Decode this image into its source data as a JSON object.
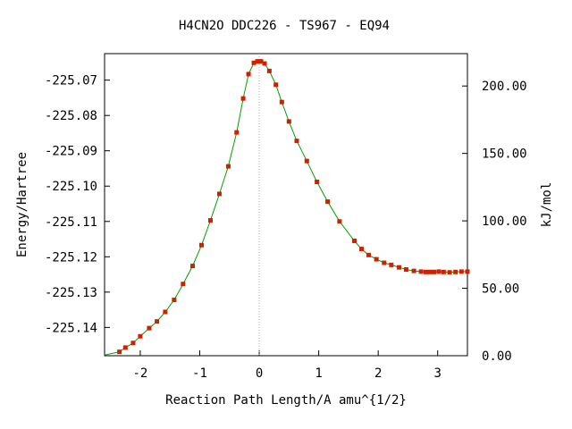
{
  "chart_data": {
    "type": "scatter",
    "title": "H4CN2O   DDC226 - TS967 - EQ94",
    "xlabel": "Reaction Path Length/A amu^{1/2}",
    "ylabel": "Energy/Hartree",
    "y2label": "kJ/mol",
    "xlim": [
      -2.6,
      3.5
    ],
    "ylim": [
      -225.148,
      -225.0625
    ],
    "y2lim": [
      0,
      224
    ],
    "x_ticks": [
      -2,
      -1,
      0,
      1,
      2,
      3
    ],
    "x_tick_labels": [
      "-2",
      "-1",
      "0",
      "1",
      "2",
      "3"
    ],
    "y_ticks": [
      -225.07,
      -225.08,
      -225.09,
      -225.1,
      -225.11,
      -225.12,
      -225.13,
      -225.14
    ],
    "y_tick_labels": [
      "-225.07",
      "-225.08",
      "-225.09",
      "-225.10",
      "-225.11",
      "-225.12",
      "-225.13",
      "-225.14"
    ],
    "y2_ticks": [
      0,
      50,
      100,
      150,
      200
    ],
    "y2_tick_labels": [
      "0.00",
      "50.00",
      "100.00",
      "150.00",
      "200.00"
    ],
    "ts_marker_x": 0,
    "grid": false,
    "colors": {
      "line": "#00a000",
      "marker": "#cc2200",
      "ts_line": "#aaaaaa"
    },
    "series": [
      {
        "x": [
          -2.35,
          -2.25,
          -2.12,
          -2.0,
          -1.85,
          -1.72,
          -1.58,
          -1.43,
          -1.28,
          -1.12,
          -0.97,
          -0.82,
          -0.67,
          -0.52,
          -0.38,
          -0.27,
          -0.18,
          -0.09,
          -0.03,
          0.0,
          0.03,
          0.09,
          0.17,
          0.28,
          0.38,
          0.5,
          0.63,
          0.8,
          0.97,
          1.15,
          1.35,
          1.6,
          1.72,
          1.84,
          1.97,
          2.1,
          2.22,
          2.35,
          2.47,
          2.6,
          2.72,
          2.8,
          2.87,
          2.94,
          3.02,
          3.1,
          3.2,
          3.3,
          3.4,
          3.5
        ],
        "y": [
          -225.1469,
          -225.1457,
          -225.1444,
          -225.1425,
          -225.1402,
          -225.1383,
          -225.1356,
          -225.1322,
          -225.1277,
          -225.1226,
          -225.1167,
          -225.1097,
          -225.1022,
          -225.0944,
          -225.0848,
          -225.0752,
          -225.0683,
          -225.0651,
          -225.0647,
          -225.0647,
          -225.0647,
          -225.0653,
          -225.0674,
          -225.0713,
          -225.0762,
          -225.0817,
          -225.0872,
          -225.0929,
          -225.0988,
          -225.1044,
          -225.11,
          -225.1155,
          -225.1178,
          -225.1195,
          -225.1207,
          -225.1217,
          -225.1223,
          -225.123,
          -225.1236,
          -225.124,
          -225.1242,
          -225.1243,
          -225.1243,
          -225.1243,
          -225.1242,
          -225.1243,
          -225.1244,
          -225.1243,
          -225.1242,
          -225.1242
        ]
      }
    ]
  }
}
